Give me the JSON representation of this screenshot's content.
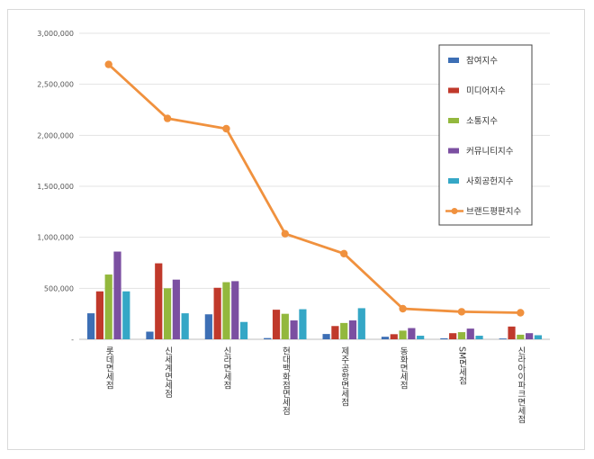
{
  "chart_data": {
    "type": "bar",
    "categories": [
      "롯데면세점",
      "신세계면세점",
      "신라면세점",
      "현대백화점면세점",
      "제주공항면세점",
      "동화면세점",
      "SM면세점",
      "신라아이파크면세점"
    ],
    "ylim": [
      0,
      3000000
    ],
    "yticks": [
      "-",
      "500,000",
      "1,000,000",
      "1,500,000",
      "2,000,000",
      "2,500,000",
      "3,000,000"
    ],
    "grid": true,
    "legend": "top-right",
    "series": [
      {
        "name": "참여지수",
        "type": "bar",
        "color": "#3d6fb5",
        "values": [
          255000,
          75000,
          245000,
          12000,
          52000,
          25000,
          10000,
          8000
        ]
      },
      {
        "name": "미디어지수",
        "type": "bar",
        "color": "#c0392b",
        "values": [
          470000,
          745000,
          505000,
          290000,
          130000,
          50000,
          60000,
          125000
        ]
      },
      {
        "name": "소통지수",
        "type": "bar",
        "color": "#93b83d",
        "values": [
          635000,
          500000,
          560000,
          250000,
          160000,
          85000,
          70000,
          45000
        ]
      },
      {
        "name": "커뮤니티지수",
        "type": "bar",
        "color": "#7b4fa1",
        "values": [
          860000,
          585000,
          570000,
          185000,
          185000,
          110000,
          105000,
          60000
        ]
      },
      {
        "name": "사회공헌지수",
        "type": "bar",
        "color": "#35a7c6",
        "values": [
          470000,
          255000,
          170000,
          295000,
          305000,
          35000,
          35000,
          40000
        ]
      },
      {
        "name": "브랜드평판지수",
        "type": "line",
        "color": "#f0913e",
        "values": [
          2695000,
          2165000,
          2065000,
          1035000,
          840000,
          300000,
          270000,
          260000
        ]
      }
    ]
  }
}
